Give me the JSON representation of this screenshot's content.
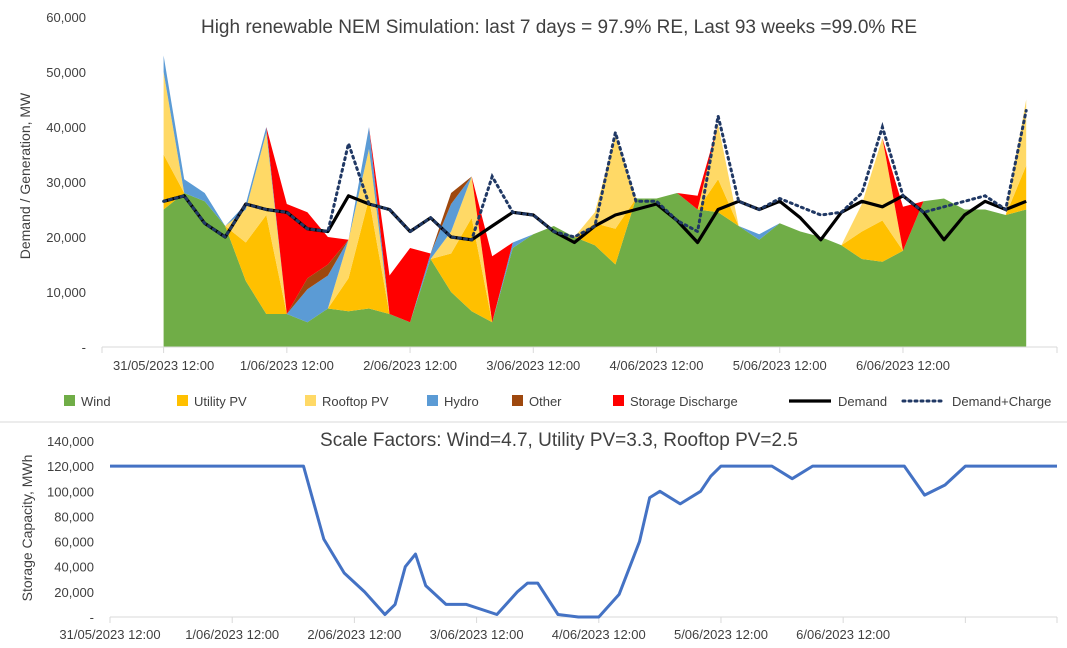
{
  "chart_data": [
    {
      "type": "area",
      "stacked": true,
      "title": "High renewable NEM Simulation: last 7 days = 97.9% RE, Last 93 weeks =99.0% RE",
      "ylabel": "Demand / Generation, MW",
      "xlabel": "",
      "x_unit": "hours since 31/05/2023 12:00",
      "xlim": [
        -12,
        174
      ],
      "ylim": [
        0,
        60000
      ],
      "y_ticks": [
        0,
        10000,
        20000,
        30000,
        40000,
        50000,
        60000
      ],
      "y_tick_labels": [
        "-",
        "10,000",
        "20,000",
        "30,000",
        "40,000",
        "50,000",
        "60,000"
      ],
      "x_tick_labels": [
        "31/05/2023 12:00",
        "1/06/2023 12:00",
        "2/06/2023 12:00",
        "3/06/2023 12:00",
        "4/06/2023 12:00",
        "5/06/2023 12:00",
        "6/06/2023 12:00"
      ],
      "grid": false,
      "legend_position": "bottom",
      "x": [
        0,
        4,
        8,
        12,
        16,
        20,
        24,
        28,
        32,
        36,
        40,
        44,
        48,
        52,
        56,
        60,
        64,
        68,
        72,
        76,
        80,
        84,
        88,
        92,
        96,
        100,
        104,
        108,
        112,
        116,
        120,
        124,
        128,
        132,
        136,
        140,
        144,
        148,
        152,
        156,
        160,
        164,
        168
      ],
      "series": [
        {
          "name": "Wind",
          "color": "#70AD47",
          "values": [
            25000,
            28000,
            26500,
            22000,
            12000,
            6000,
            6000,
            4500,
            7000,
            6500,
            7000,
            6000,
            4500,
            16000,
            10000,
            6500,
            4500,
            18000,
            20500,
            22000,
            20000,
            18500,
            15000,
            27000,
            27000,
            28000,
            25000,
            24500,
            22000,
            19500,
            22500,
            21000,
            20000,
            18500,
            16000,
            15500,
            17500,
            26500,
            27000,
            25000,
            25000,
            24000,
            25000
          ]
        },
        {
          "name": "Utility PV",
          "color": "#FFC000",
          "values": [
            10000,
            0,
            0,
            0,
            7000,
            18000,
            0,
            0,
            0,
            6000,
            20000,
            0,
            0,
            0,
            7000,
            17000,
            0,
            0,
            0,
            0,
            0,
            4000,
            6500,
            0,
            0,
            0,
            0,
            6000,
            0,
            0,
            0,
            0,
            0,
            0,
            5000,
            7500,
            0,
            0,
            0,
            0,
            0,
            0,
            8000
          ]
        },
        {
          "name": "Rooftop PV",
          "color": "#FFD966",
          "values": [
            15000,
            0,
            0,
            0,
            6000,
            15000,
            0,
            0,
            0,
            7000,
            9000,
            0,
            0,
            0,
            4000,
            7500,
            0,
            0,
            0,
            0,
            0,
            2000,
            17000,
            0,
            0,
            0,
            0,
            10000,
            0,
            0,
            0,
            0,
            0,
            0,
            5000,
            15000,
            0,
            0,
            0,
            0,
            0,
            0,
            12000
          ]
        },
        {
          "name": "Hydro",
          "color": "#5B9BD5",
          "values": [
            3000,
            2500,
            1500,
            0,
            1000,
            1000,
            0,
            6000,
            6000,
            0,
            4000,
            0,
            0,
            1000,
            5000,
            0,
            0,
            1000,
            0,
            0,
            0,
            0,
            0,
            0,
            0,
            0,
            0,
            0,
            0,
            1000,
            0,
            0,
            0,
            0,
            0,
            0,
            0,
            0,
            0,
            0,
            0,
            0,
            0
          ]
        },
        {
          "name": "Other",
          "color": "#9E480E",
          "values": [
            0,
            0,
            0,
            0,
            0,
            0,
            0,
            2000,
            2000,
            0,
            0,
            0,
            0,
            0,
            2000,
            0,
            0,
            0,
            0,
            0,
            0,
            0,
            0,
            0,
            0,
            0,
            0,
            0,
            0,
            0,
            0,
            0,
            0,
            0,
            0,
            0,
            0,
            0,
            0,
            0,
            0,
            0,
            0
          ]
        },
        {
          "name": "Storage Discharge",
          "color": "#FF0000",
          "values": [
            0,
            0,
            0,
            0,
            0,
            0,
            20000,
            12000,
            5000,
            0,
            0,
            7000,
            13500,
            0,
            0,
            0,
            12000,
            0,
            0,
            0,
            0,
            0,
            0,
            0,
            0,
            0,
            2500,
            0,
            0,
            0,
            0,
            0,
            0,
            0,
            0,
            0,
            8000,
            0,
            0,
            0,
            0,
            0,
            0
          ]
        }
      ],
      "lines": [
        {
          "name": "Demand",
          "color": "#000000",
          "values": [
            26500,
            27500,
            22500,
            20000,
            26000,
            25000,
            24500,
            21500,
            21000,
            27500,
            26000,
            25000,
            21000,
            23500,
            20000,
            19500,
            22000,
            24500,
            24000,
            21000,
            19000,
            22000,
            24000,
            25000,
            26000,
            23000,
            19000,
            25000,
            26500,
            25000,
            26500,
            23500,
            19500,
            24500,
            26500,
            25500,
            27500,
            24500,
            19500,
            24000,
            26500,
            25000,
            26500
          ]
        },
        {
          "name": "Demand+Charge",
          "color": "#203864",
          "dashed": true,
          "values": [
            26500,
            27500,
            22500,
            20000,
            26000,
            25000,
            24500,
            21500,
            21000,
            37000,
            26000,
            25000,
            21000,
            23500,
            20000,
            19500,
            31000,
            24500,
            24000,
            21000,
            20000,
            22000,
            39000,
            26500,
            26500,
            23000,
            21000,
            42000,
            26500,
            25000,
            27000,
            25500,
            24000,
            24500,
            28000,
            40000,
            27500,
            24500,
            25500,
            26500,
            27500,
            25000,
            43000
          ]
        }
      ]
    },
    {
      "type": "line",
      "title": "Scale Factors: Wind=4.7, Utility PV=3.3, Rooftop PV=2.5",
      "ylabel": "Storage Capacity, MWh",
      "xlabel": "",
      "x_unit": "hours since 31/05/2023 12:00",
      "xlim": [
        -12,
        174
      ],
      "ylim": [
        0,
        140000
      ],
      "y_ticks": [
        0,
        20000,
        40000,
        60000,
        80000,
        100000,
        120000,
        140000
      ],
      "y_tick_labels": [
        "-",
        "20,000",
        "40,000",
        "60,000",
        "80,000",
        "100,000",
        "120,000",
        "140,000"
      ],
      "x_tick_labels": [
        "31/05/2023 12:00",
        "1/06/2023 12:00",
        "2/06/2023 12:00",
        "3/06/2023 12:00",
        "4/06/2023 12:00",
        "5/06/2023 12:00",
        "6/06/2023 12:00"
      ],
      "grid": false,
      "series": [
        {
          "name": "",
          "color": "#4472C4",
          "x": [
            -12,
            0,
            10,
            18,
            26,
            30,
            34,
            38,
            42,
            44,
            46,
            48,
            50,
            54,
            58,
            64,
            68,
            70,
            72,
            76,
            80,
            84,
            88,
            92,
            94,
            96,
            100,
            104,
            106,
            108,
            110,
            114,
            118,
            122,
            126,
            130,
            136,
            140,
            144,
            148,
            152,
            156,
            160,
            174
          ],
          "values": [
            120000,
            120000,
            120000,
            120000,
            120000,
            62000,
            35000,
            20000,
            2000,
            10000,
            40000,
            50000,
            25000,
            10000,
            10000,
            2000,
            20000,
            27000,
            27000,
            2000,
            0,
            0,
            18000,
            60000,
            95000,
            100000,
            90000,
            100000,
            112000,
            120000,
            120000,
            120000,
            120000,
            110000,
            120000,
            120000,
            120000,
            120000,
            120000,
            97000,
            105000,
            120000,
            120000,
            120000
          ]
        }
      ]
    }
  ],
  "legend": [
    {
      "label": "Wind",
      "kind": "area",
      "color": "#70AD47"
    },
    {
      "label": "Utility PV",
      "kind": "area",
      "color": "#FFC000"
    },
    {
      "label": "Rooftop PV",
      "kind": "area",
      "color": "#FFD966"
    },
    {
      "label": "Hydro",
      "kind": "area",
      "color": "#5B9BD5"
    },
    {
      "label": "Other",
      "kind": "area",
      "color": "#9E480E"
    },
    {
      "label": "Storage Discharge",
      "kind": "area",
      "color": "#FF0000"
    },
    {
      "label": "Demand",
      "kind": "line",
      "color": "#000000"
    },
    {
      "label": "Demand+Charge",
      "kind": "dotted",
      "color": "#203864"
    }
  ]
}
